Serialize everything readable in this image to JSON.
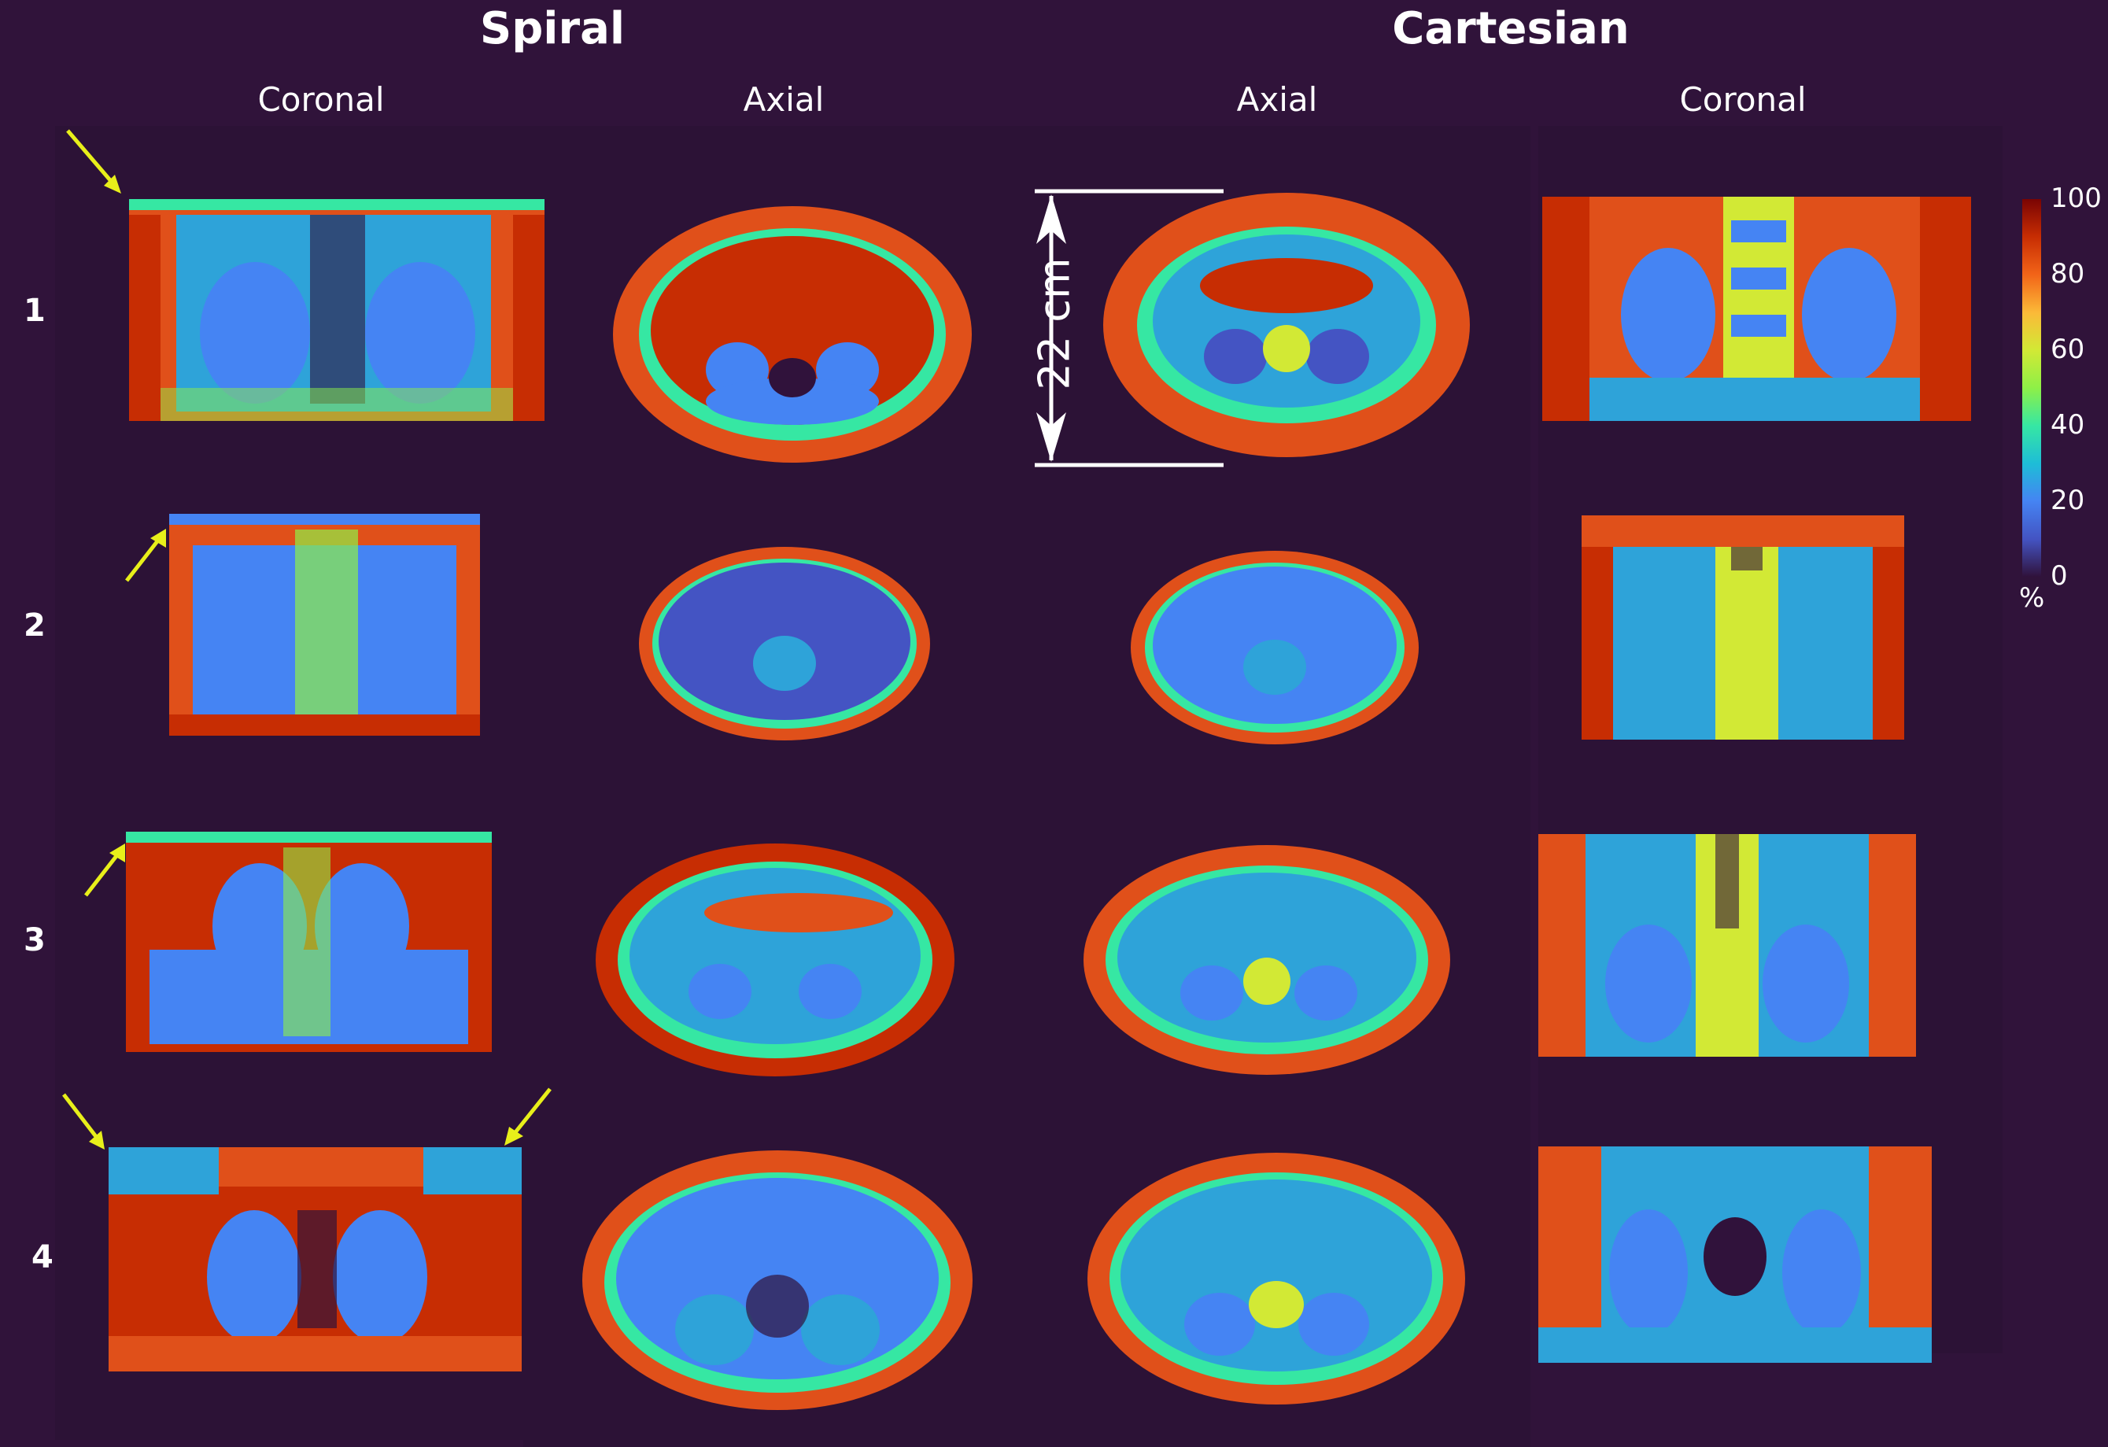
{
  "groups": {
    "spiral": "Spiral",
    "cartesian": "Cartesian"
  },
  "columns": [
    "Coronal",
    "Axial",
    "Axial",
    "Coronal"
  ],
  "rows": [
    "1",
    "2",
    "3",
    "4"
  ],
  "scale": {
    "label": "22 cm"
  },
  "colorbar": {
    "ticks": [
      "100",
      "80",
      "60",
      "40",
      "20",
      "0"
    ],
    "unit": "%",
    "colormap": [
      "#7a0403",
      "#c72d03",
      "#f26418",
      "#fbb938",
      "#d2e935",
      "#8ef047",
      "#36e7a3",
      "#1ebdd7",
      "#4584f3",
      "#4454c3",
      "#30123b"
    ]
  },
  "annotations": {
    "arrow_color": "#e8ef1a"
  }
}
